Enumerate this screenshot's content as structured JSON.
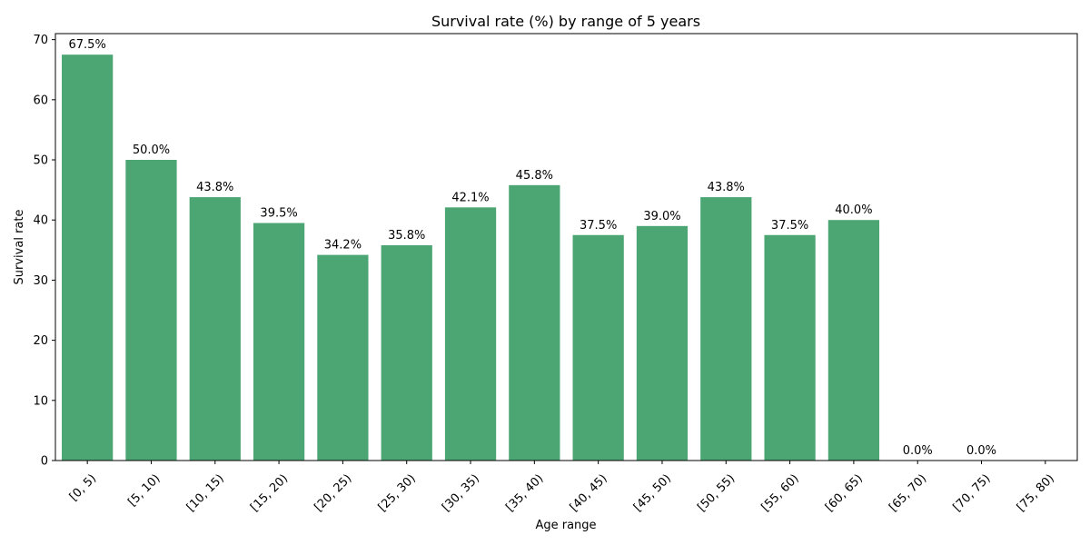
{
  "chart_data": {
    "type": "bar",
    "title": "Survival rate (%) by range of 5 years",
    "xlabel": "Age range",
    "ylabel": "Survival rate",
    "ylim": [
      0,
      71
    ],
    "yticks": [
      0,
      10,
      20,
      30,
      40,
      50,
      60,
      70
    ],
    "bar_color": "#4ca673",
    "categories": [
      "[0, 5)",
      "[5, 10)",
      "[10, 15)",
      "[15, 20)",
      "[20, 25)",
      "[25, 30)",
      "[30, 35)",
      "[35, 40)",
      "[40, 45)",
      "[45, 50)",
      "[50, 55)",
      "[55, 60)",
      "[60, 65)",
      "[65, 70)",
      "[70, 75)",
      "[75, 80)"
    ],
    "values": [
      67.5,
      50.0,
      43.8,
      39.5,
      34.2,
      35.8,
      42.1,
      45.8,
      37.5,
      39.0,
      43.8,
      37.5,
      40.0,
      0.0,
      0.0,
      null
    ],
    "data_labels": [
      "67.5%",
      "50.0%",
      "43.8%",
      "39.5%",
      "34.2%",
      "35.8%",
      "42.1%",
      "45.8%",
      "37.5%",
      "39.0%",
      "43.8%",
      "37.5%",
      "40.0%",
      "0.0%",
      "0.0%",
      ""
    ],
    "grid": false,
    "legend": "none"
  }
}
